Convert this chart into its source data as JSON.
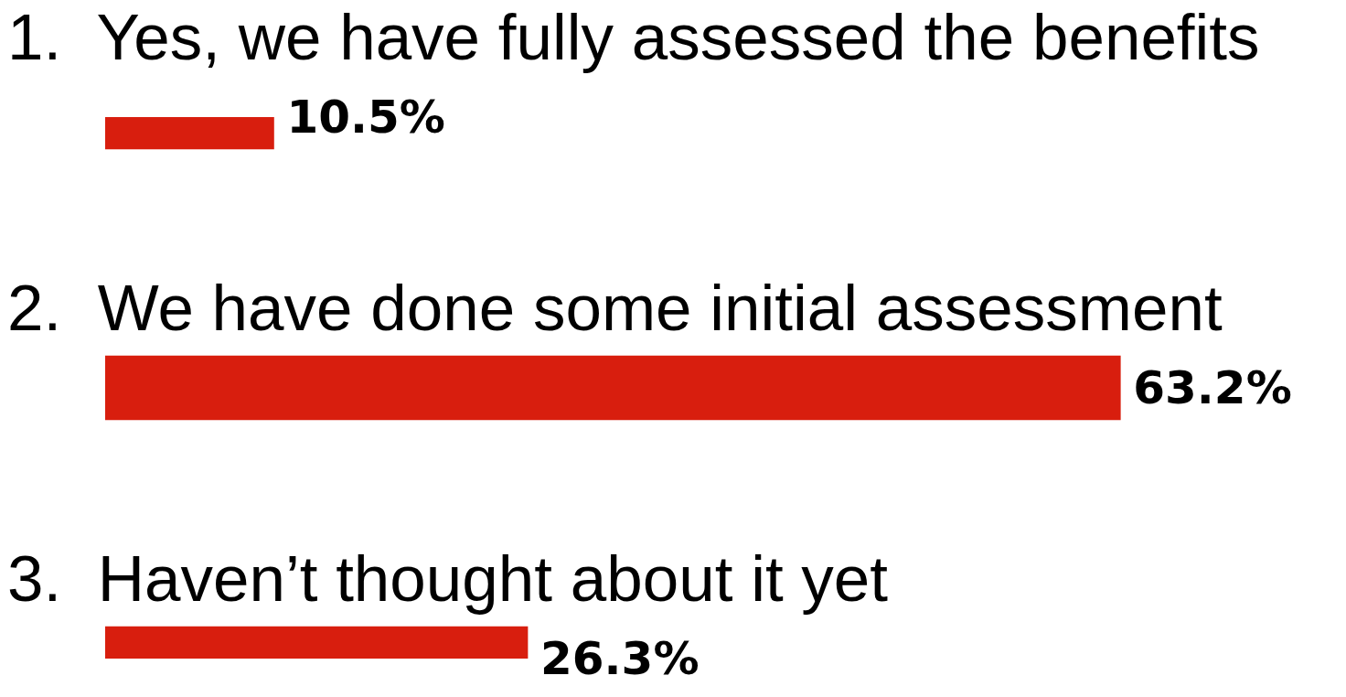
{
  "chart_data": {
    "type": "bar",
    "orientation": "horizontal",
    "categories": [
      "1.  Yes, we have fully assessed the benefits",
      "2.  We have done some initial assessment",
      "3.  Haven’t thought about it yet"
    ],
    "values": [
      10.5,
      63.2,
      26.3
    ],
    "value_labels": [
      "10.5%",
      "63.2%",
      "26.3%"
    ],
    "color": "#d81e0e",
    "tick_labels": false
  }
}
